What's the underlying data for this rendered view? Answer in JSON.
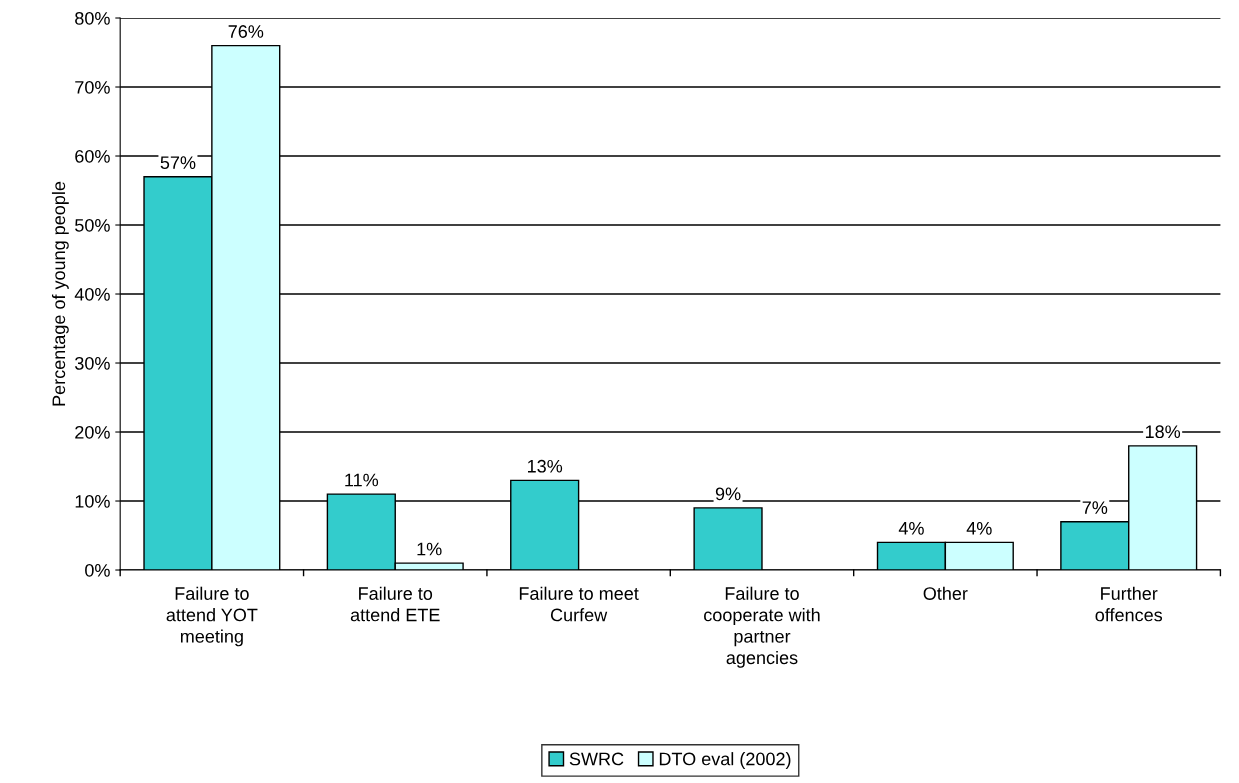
{
  "chart_data": {
    "type": "bar",
    "ylabel": "Percentage of young people",
    "categories": [
      "Failure to\nattend YOT\nmeeting",
      "Failure to\nattend ETE",
      "Failure to meet\nCurfew",
      "Failure to\ncooperate with\npartner\nagencies",
      "Other",
      "Further\noffences"
    ],
    "series": [
      {
        "name": "SWRC",
        "color": "#33cccc",
        "values": [
          57,
          11,
          13,
          9,
          4,
          7
        ],
        "value_labels": [
          "57%",
          "11%",
          "13%",
          "9%",
          "4%",
          "7%"
        ]
      },
      {
        "name": "DTO eval (2002)",
        "color": "#ccffff",
        "values": [
          76,
          1,
          null,
          null,
          4,
          18
        ],
        "value_labels": [
          "76%",
          "1%",
          null,
          null,
          "4%",
          "18%"
        ]
      }
    ],
    "ylim": [
      0,
      80
    ],
    "yticks": [
      {
        "value": 0,
        "label": "0%"
      },
      {
        "value": 10,
        "label": "10%"
      },
      {
        "value": 20,
        "label": "20%"
      },
      {
        "value": 30,
        "label": "30%"
      },
      {
        "value": 40,
        "label": "40%"
      },
      {
        "value": 50,
        "label": "50%"
      },
      {
        "value": 60,
        "label": "60%"
      },
      {
        "value": 70,
        "label": "70%"
      },
      {
        "value": 80,
        "label": "80%"
      }
    ],
    "grid": "y",
    "legend": "bottom"
  }
}
